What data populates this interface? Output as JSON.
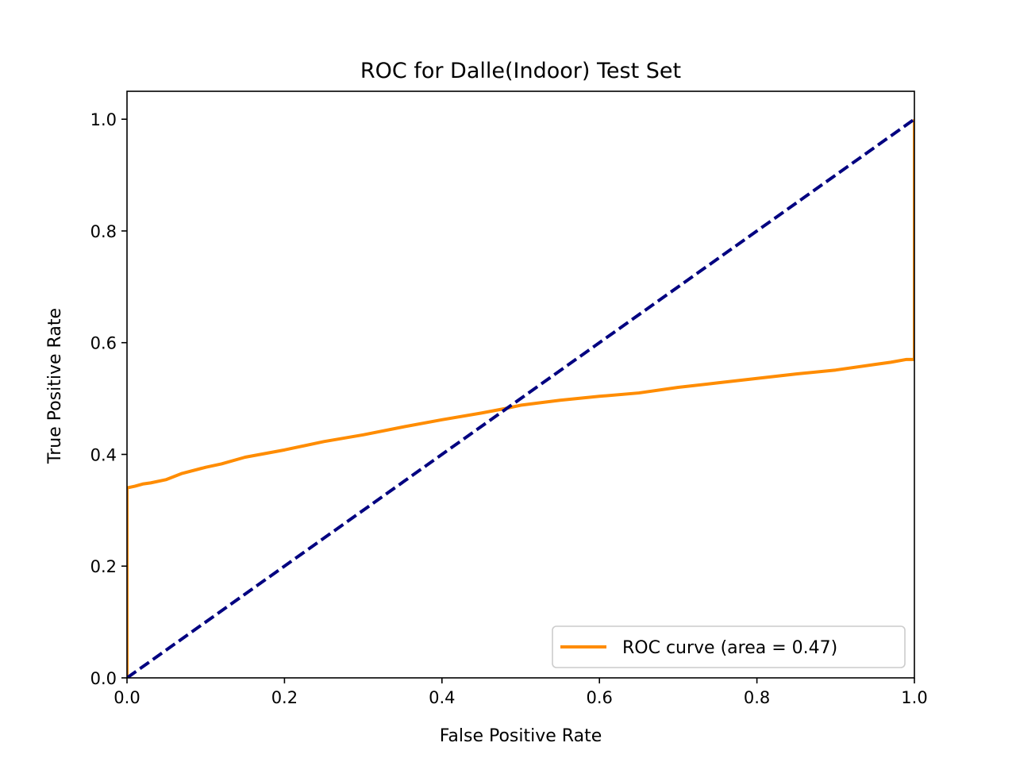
{
  "chart_data": {
    "type": "line",
    "title": "ROC for Dalle(Indoor) Test Set",
    "xlabel": "False Positive Rate",
    "ylabel": "True Positive Rate",
    "xlim": [
      0.0,
      1.0
    ],
    "ylim": [
      0.0,
      1.05
    ],
    "xticks": [
      0.0,
      0.2,
      0.4,
      0.6,
      0.8,
      1.0
    ],
    "yticks": [
      0.0,
      0.2,
      0.4,
      0.6,
      0.8,
      1.0
    ],
    "xtick_labels": [
      "0.0",
      "0.2",
      "0.4",
      "0.6",
      "0.8",
      "1.0"
    ],
    "ytick_labels": [
      "0.0",
      "0.2",
      "0.4",
      "0.6",
      "0.8",
      "1.0"
    ],
    "grid": false,
    "legend_position": "lower-right",
    "series": [
      {
        "name": "ROC curve (area = 0.47)",
        "color": "#ff8c00",
        "style": "solid",
        "x": [
          0.0,
          0.0,
          0.01,
          0.02,
          0.03,
          0.05,
          0.07,
          0.1,
          0.12,
          0.15,
          0.2,
          0.25,
          0.3,
          0.35,
          0.4,
          0.45,
          0.48,
          0.5,
          0.55,
          0.6,
          0.65,
          0.7,
          0.75,
          0.8,
          0.85,
          0.9,
          0.95,
          0.97,
          0.99,
          1.0,
          1.0
        ],
        "y": [
          0.0,
          0.34,
          0.343,
          0.347,
          0.349,
          0.355,
          0.366,
          0.377,
          0.383,
          0.395,
          0.408,
          0.423,
          0.435,
          0.449,
          0.462,
          0.474,
          0.482,
          0.488,
          0.497,
          0.504,
          0.51,
          0.52,
          0.528,
          0.536,
          0.544,
          0.551,
          0.561,
          0.565,
          0.57,
          0.57,
          1.0
        ]
      },
      {
        "name": "",
        "color": "#000080",
        "style": "dashed",
        "x": [
          0.0,
          1.0
        ],
        "y": [
          0.0,
          1.0
        ]
      }
    ]
  }
}
